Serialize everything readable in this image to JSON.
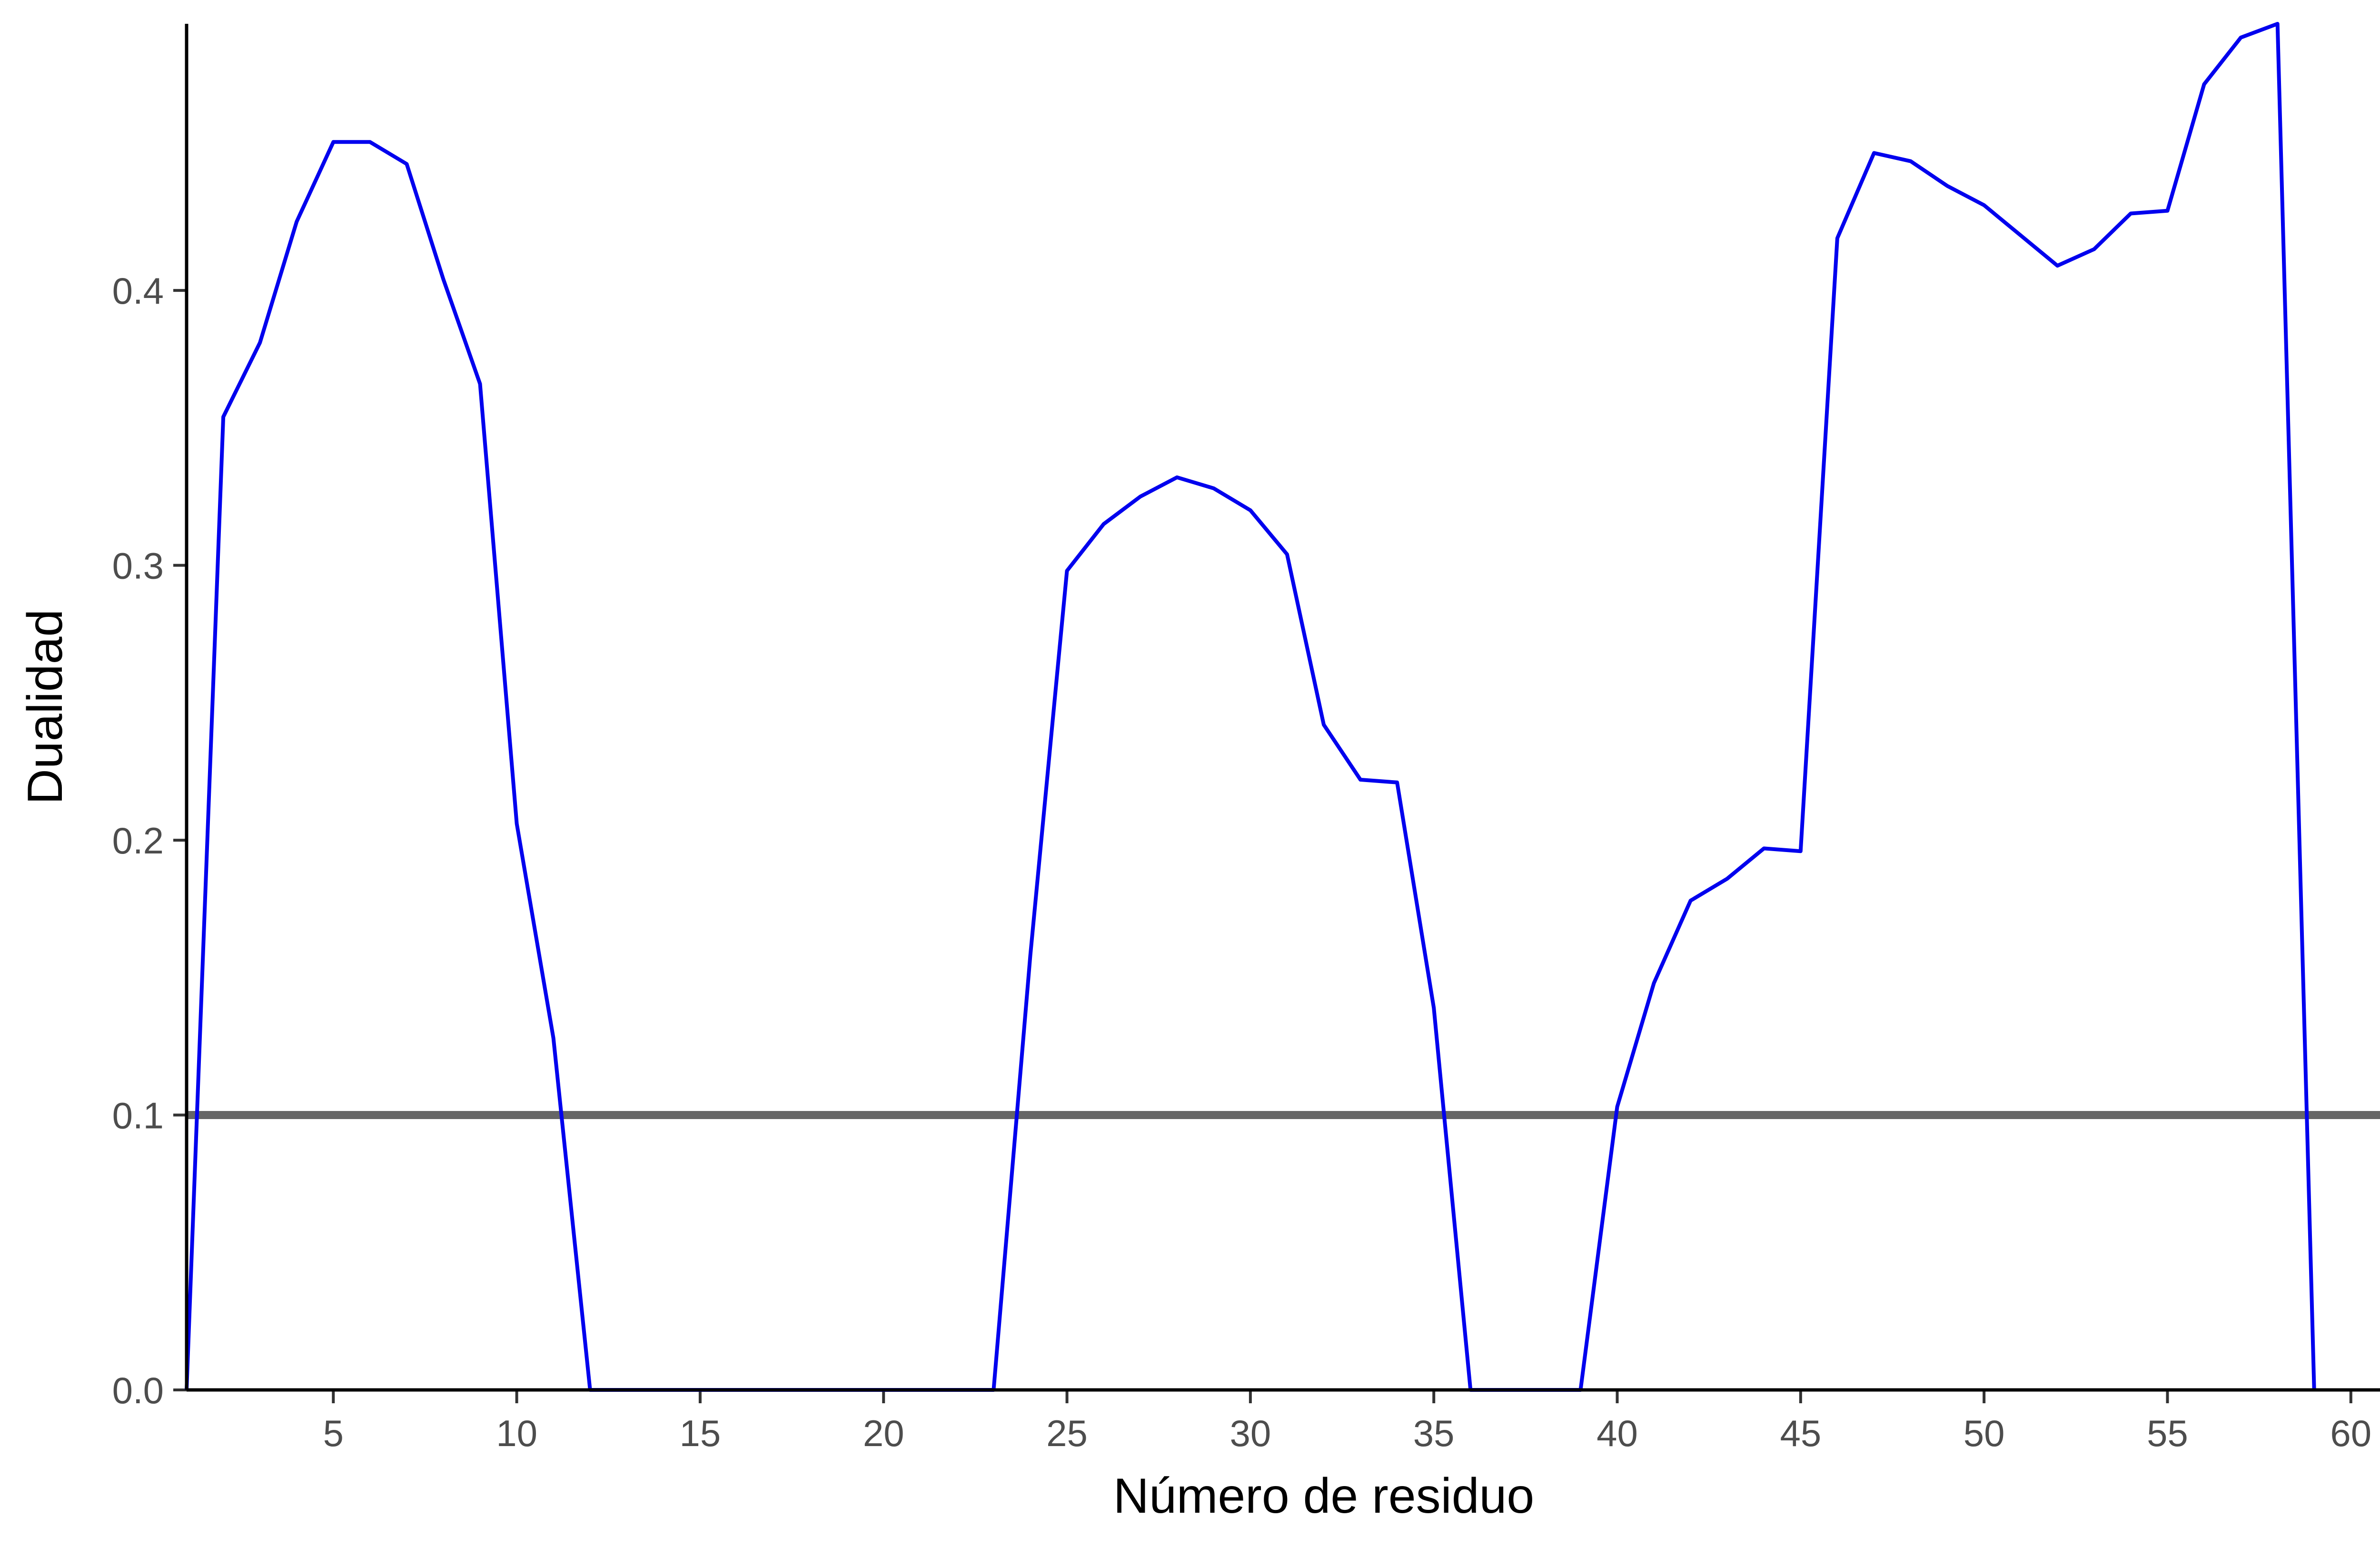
{
  "chart_data": {
    "type": "line",
    "title": "",
    "xlabel": "Número de residuo",
    "ylabel": "Dualidad",
    "xlim": [
      1,
      63
    ],
    "ylim": [
      0,
      0.497
    ],
    "xticks": [
      5,
      10,
      15,
      20,
      25,
      30,
      35,
      40,
      45,
      50,
      55,
      60
    ],
    "yticks": [
      0.0,
      0.1,
      0.2,
      0.3,
      0.4
    ],
    "ytick_labels": [
      "0.0",
      "0.1",
      "0.2",
      "0.3",
      "0.4"
    ],
    "grid": false,
    "legend": "none",
    "threshold": {
      "y": 0.1,
      "color": "#666666"
    },
    "series": [
      {
        "color": "#0000ee",
        "x": [
          1,
          2,
          3,
          4,
          5,
          6,
          7,
          8,
          9,
          10,
          11,
          12,
          13,
          14,
          15,
          16,
          17,
          18,
          19,
          20,
          21,
          22,
          23,
          24,
          25,
          26,
          27,
          28,
          29,
          30,
          31,
          32,
          33,
          34,
          35,
          36,
          37,
          38,
          39,
          40,
          41,
          42,
          43,
          44,
          45,
          46,
          47,
          48,
          49,
          50,
          51,
          52,
          53,
          54,
          55,
          56,
          57,
          58,
          59
        ],
        "y": [
          0.0,
          0.354,
          0.381,
          0.425,
          0.454,
          0.454,
          0.446,
          0.404,
          0.366,
          0.206,
          0.128,
          0.0,
          0.0,
          0.0,
          0.0,
          0.0,
          0.0,
          0.0,
          0.0,
          0.0,
          0.0,
          0.0,
          0.0,
          0.158,
          0.298,
          0.315,
          0.325,
          0.332,
          0.328,
          0.32,
          0.304,
          0.242,
          0.222,
          0.221,
          0.139,
          0.0,
          0.0,
          0.0,
          0.0,
          0.103,
          0.148,
          0.178,
          0.186,
          0.197,
          0.196,
          0.419,
          0.45,
          0.447,
          0.438,
          0.431,
          0.42,
          0.409,
          0.415,
          0.428,
          0.429,
          0.475,
          0.492,
          0.497,
          0.0
        ]
      }
    ]
  }
}
